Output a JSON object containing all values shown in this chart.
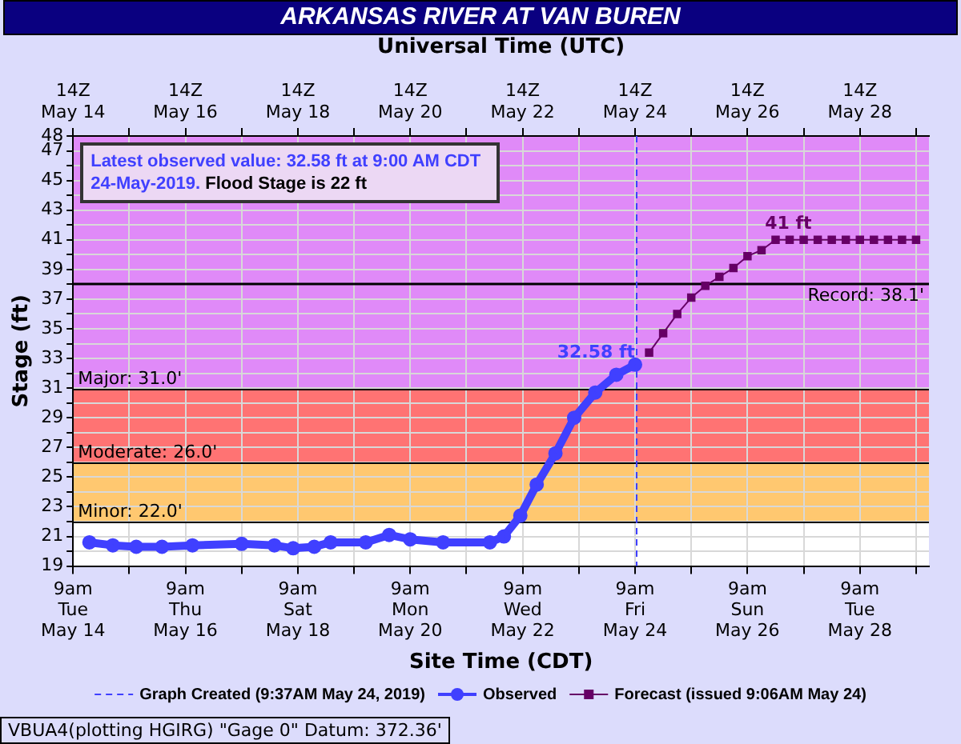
{
  "chart_data": {
    "type": "line",
    "title": "ARKANSAS RIVER AT VAN BUREN",
    "xlabel": "Site Time (CDT)",
    "x2label": "Universal Time (UTC)",
    "ylabel": "Stage (ft)",
    "xlim": [
      "2019-05-14T09:00",
      "2019-05-29T14:30"
    ],
    "xticks": [
      {
        "value": "2019-05-14T09:00",
        "label": "9am\nTue\nMay 14"
      },
      {
        "value": "2019-05-15T09:00",
        "label": null
      },
      {
        "value": "2019-05-16T09:00",
        "label": "9am\nThu\nMay 16"
      },
      {
        "value": "2019-05-17T09:00",
        "label": null
      },
      {
        "value": "2019-05-18T09:00",
        "label": "9am\nSat\nMay 18"
      },
      {
        "value": "2019-05-19T09:00",
        "label": null
      },
      {
        "value": "2019-05-20T09:00",
        "label": "9am\nMon\nMay 20"
      },
      {
        "value": "2019-05-21T09:00",
        "label": null
      },
      {
        "value": "2019-05-22T09:00",
        "label": "9am\nWed\nMay 22"
      },
      {
        "value": "2019-05-23T09:00",
        "label": null
      },
      {
        "value": "2019-05-24T09:00",
        "label": "9am\nFri\nMay 24"
      },
      {
        "value": "2019-05-25T09:00",
        "label": null
      },
      {
        "value": "2019-05-26T09:00",
        "label": "9am\nSun\nMay 26"
      },
      {
        "value": "2019-05-27T09:00",
        "label": null
      },
      {
        "value": "2019-05-28T09:00",
        "label": "9am\nTue\nMay 28"
      },
      {
        "value": "2019-05-29T09:00",
        "label": null
      }
    ],
    "x2lim": [
      "2019-05-14T09:00",
      "2019-05-29T14:30"
    ],
    "x2ticks": [
      {
        "value": "2019-05-14T09:00",
        "label": "14Z\nMay 14"
      },
      {
        "value": "2019-05-15T09:00",
        "label": null
      },
      {
        "value": "2019-05-16T09:00",
        "label": "14Z\nMay 16"
      },
      {
        "value": "2019-05-17T09:00",
        "label": null
      },
      {
        "value": "2019-05-18T09:00",
        "label": "14Z\nMay 18"
      },
      {
        "value": "2019-05-19T09:00",
        "label": null
      },
      {
        "value": "2019-05-20T09:00",
        "label": "14Z\nMay 20"
      },
      {
        "value": "2019-05-21T09:00",
        "label": null
      },
      {
        "value": "2019-05-22T09:00",
        "label": "14Z\nMay 22"
      },
      {
        "value": "2019-05-23T09:00",
        "label": null
      },
      {
        "value": "2019-05-24T09:00",
        "label": "14Z\nMay 24"
      },
      {
        "value": "2019-05-25T09:00",
        "label": null
      },
      {
        "value": "2019-05-26T09:00",
        "label": "14Z\nMay 26"
      },
      {
        "value": "2019-05-27T09:00",
        "label": null
      },
      {
        "value": "2019-05-28T09:00",
        "label": "14Z\nMay 28"
      },
      {
        "value": "2019-05-29T09:00",
        "label": null
      }
    ],
    "ylim": [
      19,
      48
    ],
    "yticks": [
      19,
      {
        "value": 20,
        "label": null
      },
      21,
      {
        "value": 22,
        "label": null
      },
      23,
      {
        "value": 24,
        "label": null
      },
      25,
      {
        "value": 26,
        "label": null
      },
      27,
      {
        "value": 28,
        "label": null
      },
      29,
      {
        "value": 30,
        "label": null
      },
      31,
      {
        "value": 32,
        "label": null
      },
      33,
      {
        "value": 34,
        "label": null
      },
      35,
      {
        "value": 36,
        "label": null
      },
      37,
      {
        "value": 38,
        "label": null
      },
      39,
      {
        "value": 40,
        "label": null
      },
      41,
      {
        "value": 42,
        "label": null
      },
      43,
      {
        "value": 44,
        "label": null
      },
      45,
      {
        "value": 46,
        "label": null
      },
      47,
      48
    ],
    "grid": true,
    "legend": "bottom",
    "series": [
      {
        "name": "Observed",
        "color": "#4040ff",
        "marker": "circle",
        "x": [
          "2019-05-14T16:00",
          "2019-05-15T02:00",
          "2019-05-15T12:00",
          "2019-05-15T23:00",
          "2019-05-16T12:00",
          "2019-05-17T09:00",
          "2019-05-17T23:00",
          "2019-05-18T07:00",
          "2019-05-18T16:00",
          "2019-05-18T23:00",
          "2019-05-19T14:00",
          "2019-05-20T00:00",
          "2019-05-20T09:00",
          "2019-05-20T23:00",
          "2019-05-21T19:00",
          "2019-05-22T01:00",
          "2019-05-22T08:00",
          "2019-05-22T15:00",
          "2019-05-22T23:00",
          "2019-05-23T07:00",
          "2019-05-23T16:00",
          "2019-05-24T01:00",
          "2019-05-24T09:00"
        ],
        "values": [
          20.6,
          20.4,
          20.3,
          20.3,
          20.4,
          20.5,
          20.4,
          20.2,
          20.3,
          20.6,
          20.6,
          21.1,
          20.8,
          20.6,
          20.6,
          21.0,
          22.4,
          24.5,
          26.6,
          29.0,
          30.7,
          31.9,
          32.58
        ]
      },
      {
        "name": "Forecast (issued 9:06AM May 24)",
        "color": "#660066",
        "marker": "square",
        "x": [
          "2019-05-24T15:00",
          "2019-05-24T21:00",
          "2019-05-25T03:00",
          "2019-05-25T09:00",
          "2019-05-25T15:00",
          "2019-05-25T21:00",
          "2019-05-26T03:00",
          "2019-05-26T09:00",
          "2019-05-26T15:00",
          "2019-05-26T21:00",
          "2019-05-27T03:00",
          "2019-05-27T09:00",
          "2019-05-27T15:00",
          "2019-05-27T21:00",
          "2019-05-28T03:00",
          "2019-05-28T09:00",
          "2019-05-28T15:00",
          "2019-05-28T21:00",
          "2019-05-29T03:00",
          "2019-05-29T09:00"
        ],
        "values": [
          33.4,
          34.7,
          36.0,
          37.1,
          37.9,
          38.5,
          39.1,
          39.9,
          40.3,
          41,
          41,
          41,
          41,
          41,
          41,
          41,
          41,
          41,
          41,
          41
        ]
      }
    ],
    "bands": [
      {
        "axis": "y",
        "from": 22,
        "to": 26,
        "label": "Minor: 22.0'",
        "color": "#ffc870"
      },
      {
        "axis": "y",
        "from": 26,
        "to": 31,
        "label": "Moderate: 26.0'",
        "color": "#ff7373"
      },
      {
        "axis": "y",
        "from": 31,
        "to": 48,
        "label": "Major: 31.0'",
        "color": "#e08af8"
      }
    ],
    "ref_lines": [
      {
        "axis": "y",
        "value": 38.1,
        "label": "Record: 38.1'",
        "color": "#000000",
        "line_style": "solid"
      },
      {
        "axis": "x",
        "value": "2019-05-24T09:37",
        "label": "Graph Created (9:37AM May 24, 2019)",
        "color": "#4040ff",
        "line_style": "dashed"
      }
    ],
    "annotations": [
      "Latest observed value: 32.58 ft at 9:00 AM CDT 24-May-2019.",
      "Flood Stage is 22 ft",
      {
        "text": "32.58 ft",
        "x": "2019-05-24T09:00",
        "y": 32.58
      },
      {
        "text": "41 ft",
        "x": "2019-05-26T21:00",
        "y": 41
      },
      "VBUA4(plotting HGIRG) \"Gage 0\" Datum: 372.36'"
    ]
  }
}
